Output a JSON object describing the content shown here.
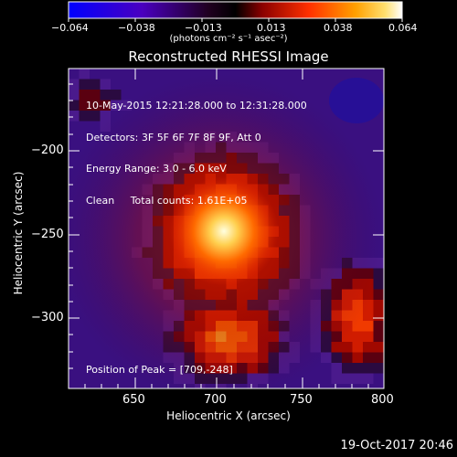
{
  "colorbar": {
    "ticks": [
      "−0.064",
      "−0.038",
      "−0.013",
      "0.013",
      "0.038",
      "0.064"
    ],
    "units": "(photons cm⁻² s⁻¹ asec⁻²)",
    "colormap": [
      "#0000ff",
      "#3a00a0",
      "#000000",
      "#7a0000",
      "#ff2a00",
      "#ff8a00",
      "#ffd040",
      "#ffffff"
    ]
  },
  "image": {
    "title": "Reconstructed RHESSI Image",
    "info_lines": [
      "10-May-2015 12:21:28.000 to 12:31:28.000",
      "Detectors: 3F 5F 6F 7F 8F 9F, Att 0",
      "Energy Range: 3.0 - 6.0 keV",
      "Clean     Total counts: 1.61E+05"
    ],
    "peak_text": "Position of Peak = [709,-248]",
    "xlabel": "Heliocentric X (arcsec)",
    "ylabel": "Heliocentric Y (arcsec)",
    "x_ticks": [
      "650",
      "700",
      "750",
      "800"
    ],
    "y_ticks": [
      "−200",
      "−250",
      "−300"
    ],
    "peak": {
      "x": 709,
      "y": -248
    }
  },
  "footer": {
    "date": "19-Oct-2017 20:46"
  }
}
